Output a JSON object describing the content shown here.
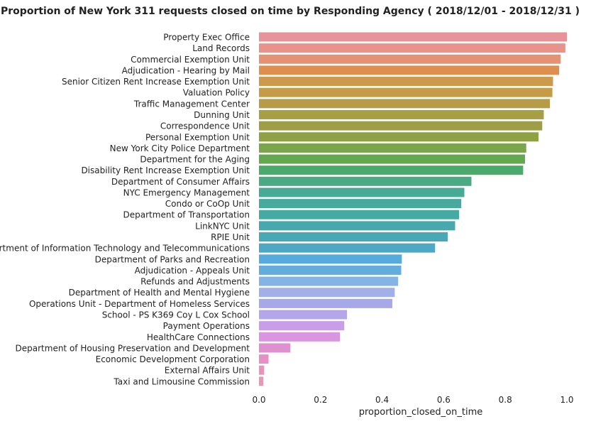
{
  "chart_data": {
    "type": "bar",
    "orientation": "horizontal",
    "title": "Proportion of New York 311 requests closed on time by Responding Agency  ( 2018/12/01 - 2018/12/31 )",
    "xlabel": "proportion_closed_on_time",
    "ylabel": "",
    "xlim": [
      0.0,
      1.0
    ],
    "x_ticks": [
      "0.0",
      "0.2",
      "0.4",
      "0.6",
      "0.8",
      "1.0"
    ],
    "grid": false,
    "categories": [
      "Property Exec Office",
      "Land Records",
      "Commercial Exemption Unit",
      "Adjudication - Hearing by Mail",
      "Senior Citizen Rent Increase Exemption Unit",
      "Valuation Policy",
      "Traffic Management Center",
      "Dunning Unit",
      "Correspondence Unit",
      "Personal Exemption Unit",
      "New York City Police Department",
      "Department for the Aging",
      "Disability Rent Increase Exemption Unit",
      "Department of Consumer Affairs",
      "NYC Emergency Management",
      "Condo or CoOp Unit",
      "Department of Transportation",
      "LinkNYC Unit",
      "RPIE Unit",
      "Department of Information Technology and Telecommunications",
      "Department of Parks and Recreation",
      "Adjudication - Appeals Unit",
      "Refunds and Adjustments",
      "Department of Health and Mental Hygiene",
      "Operations Unit - Department of Homeless Services",
      "School - PS K369 Coy L Cox School",
      "Payment Operations",
      "HealthCare Connections",
      "Department of Housing Preservation and Development",
      "Economic Development Corporation",
      "External Affairs Unit",
      "Taxi and Limousine Commission"
    ],
    "values": [
      1.0,
      0.995,
      0.98,
      0.975,
      0.955,
      0.953,
      0.945,
      0.925,
      0.92,
      0.908,
      0.868,
      0.864,
      0.858,
      0.69,
      0.667,
      0.657,
      0.65,
      0.637,
      0.613,
      0.572,
      0.464,
      0.462,
      0.452,
      0.441,
      0.433,
      0.286,
      0.277,
      0.263,
      0.102,
      0.031,
      0.017,
      0.014
    ],
    "colors": [
      "#e8929a",
      "#e8928a",
      "#e49272",
      "#de8f4e",
      "#cc9a4a",
      "#c49c48",
      "#b69c46",
      "#a89e44",
      "#9e9f44",
      "#8fa243",
      "#7ca44a",
      "#63a84f",
      "#4ca96c",
      "#49aa84",
      "#47aa94",
      "#46aa9c",
      "#45aaa4",
      "#47a8ad",
      "#49a8b6",
      "#4ca8c4",
      "#57aadc",
      "#64acdc",
      "#84b4e6",
      "#a2b0ea",
      "#a6a8e8",
      "#b4a6e8",
      "#c89ee8",
      "#d996e0",
      "#e08fd0",
      "#e690c8",
      "#e893bb",
      "#e898b0"
    ]
  }
}
